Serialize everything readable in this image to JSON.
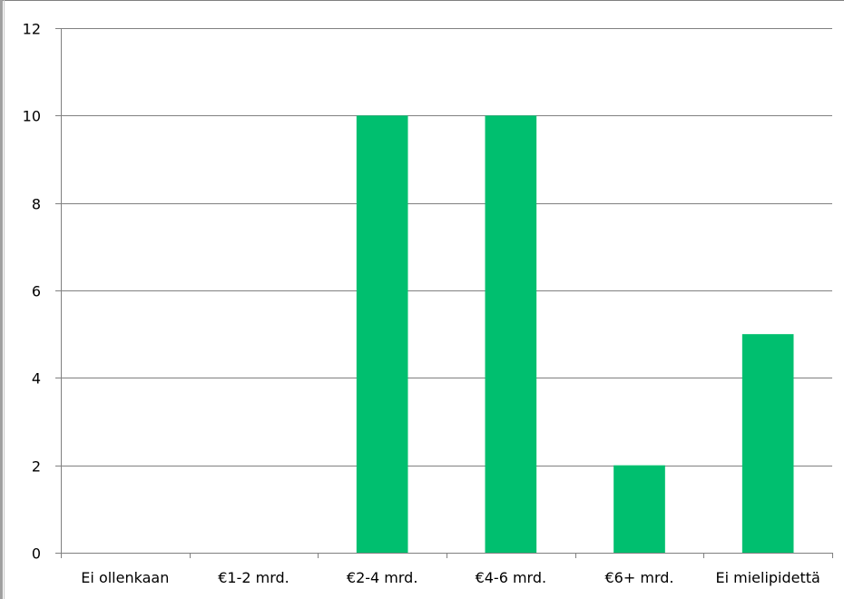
{
  "chart_data": {
    "type": "bar",
    "categories": [
      "Ei ollenkaan",
      "€1-2 mrd.",
      "€2-4 mrd.",
      "€4-6 mrd.",
      "€6+ mrd.",
      "Ei mielipidettä"
    ],
    "values": [
      0,
      0,
      10,
      10,
      2,
      5
    ],
    "title": "",
    "xlabel": "",
    "ylabel": "",
    "ylim": [
      0,
      12
    ],
    "yticks": [
      0,
      2,
      4,
      6,
      8,
      10,
      12
    ],
    "grid": true,
    "legend": "none",
    "bar_color": "#00bf6f",
    "grid_color": "#808080"
  }
}
